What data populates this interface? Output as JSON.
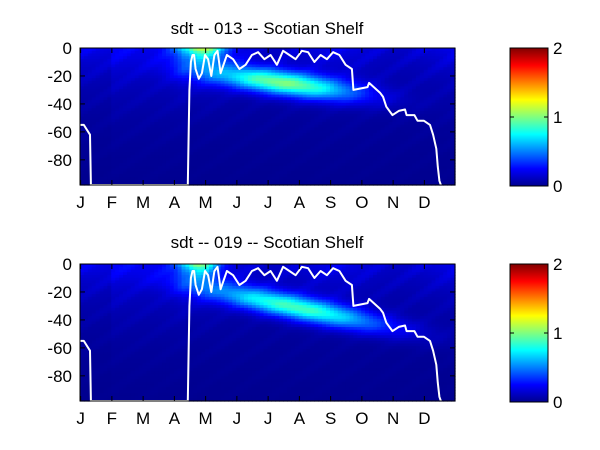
{
  "chart_data": [
    {
      "type": "heatmap",
      "title": "sdt -- 013 -- Scotian Shelf",
      "xlabel": "",
      "ylabel": "",
      "x_tick_labels": [
        "J",
        "F",
        "M",
        "A",
        "M",
        "J",
        "J",
        "A",
        "S",
        "O",
        "N",
        "D"
      ],
      "x_range_months": [
        0,
        12
      ],
      "y_tick_labels": [
        "0",
        "-20",
        "-40",
        "-60",
        "-80"
      ],
      "y_tick_values": [
        0,
        -20,
        -40,
        -60,
        -80
      ],
      "y_range": [
        -98,
        0
      ],
      "colorbar": {
        "range": [
          0,
          2
        ],
        "tick_labels": [
          "0",
          "1",
          "2"
        ],
        "colormap": "jet"
      },
      "mixed_layer_line": {
        "color": "#ffffff",
        "months": [
          0,
          0.12,
          0.32,
          0.35,
          3.45,
          3.5,
          3.55,
          3.6,
          3.65,
          3.7,
          3.8,
          3.9,
          4.0,
          4.1,
          4.2,
          4.3,
          4.4,
          4.5,
          4.7,
          4.9,
          5.1,
          5.3,
          5.5,
          5.7,
          5.9,
          6.1,
          6.3,
          6.5,
          6.7,
          6.9,
          7.1,
          7.3,
          7.5,
          7.7,
          7.9,
          8.1,
          8.3,
          8.5,
          8.7,
          8.75,
          9.2,
          9.25,
          9.6,
          9.7,
          9.8,
          10.0,
          10.2,
          10.4,
          10.45,
          10.7,
          10.8,
          11.0,
          11.2,
          11.3,
          11.4,
          11.45,
          11.5,
          11.55
        ],
        "depths": [
          -55,
          -55,
          -62,
          -98,
          -98,
          -30,
          -10,
          -5,
          -5,
          -15,
          -22,
          -18,
          -5,
          -8,
          -20,
          -5,
          -2,
          -18,
          -5,
          -8,
          -15,
          -12,
          -5,
          -3,
          -8,
          -5,
          -12,
          -2,
          -5,
          -8,
          -2,
          -3,
          -10,
          -5,
          -8,
          -3,
          -5,
          -12,
          -15,
          -30,
          -28,
          -25,
          -32,
          -35,
          -42,
          -48,
          -45,
          -44,
          -48,
          -48,
          -52,
          -52,
          -55,
          -62,
          -72,
          -85,
          -95,
          -98
        ]
      },
      "features": [
        {
          "name": "surface-maximum",
          "month_range": [
            3.4,
            4.4
          ],
          "depth_range": [
            0,
            -12
          ],
          "value": 1.0
        },
        {
          "name": "subsurface-maximum",
          "month_range": [
            4.5,
            8.5
          ],
          "depth_range": [
            -15,
            -35
          ],
          "value": 0.9
        }
      ]
    },
    {
      "type": "heatmap",
      "title": "sdt -- 019 -- Scotian Shelf",
      "xlabel": "",
      "ylabel": "",
      "x_tick_labels": [
        "J",
        "F",
        "M",
        "A",
        "M",
        "J",
        "J",
        "A",
        "S",
        "O",
        "N",
        "D"
      ],
      "x_range_months": [
        0,
        12
      ],
      "y_tick_labels": [
        "0",
        "-20",
        "-40",
        "-60",
        "-80"
      ],
      "y_tick_values": [
        0,
        -20,
        -40,
        -60,
        -80
      ],
      "y_range": [
        -98,
        0
      ],
      "colorbar": {
        "range": [
          0,
          2
        ],
        "tick_labels": [
          "0",
          "1",
          "2"
        ],
        "colormap": "jet"
      },
      "mixed_layer_line": {
        "color": "#ffffff",
        "months": [
          0,
          0.12,
          0.32,
          0.35,
          3.45,
          3.5,
          3.55,
          3.6,
          3.65,
          3.7,
          3.8,
          3.9,
          4.0,
          4.1,
          4.2,
          4.3,
          4.4,
          4.5,
          4.7,
          4.9,
          5.1,
          5.3,
          5.5,
          5.7,
          5.9,
          6.1,
          6.3,
          6.5,
          6.7,
          6.9,
          7.1,
          7.3,
          7.5,
          7.7,
          7.9,
          8.1,
          8.3,
          8.5,
          8.7,
          8.75,
          9.2,
          9.25,
          9.6,
          9.7,
          9.8,
          10.0,
          10.2,
          10.4,
          10.45,
          10.7,
          10.8,
          11.0,
          11.2,
          11.3,
          11.4,
          11.45,
          11.5,
          11.55
        ],
        "depths": [
          -55,
          -55,
          -62,
          -98,
          -98,
          -30,
          -10,
          -5,
          -5,
          -15,
          -22,
          -18,
          -5,
          -8,
          -20,
          -5,
          -2,
          -18,
          -5,
          -8,
          -15,
          -12,
          -5,
          -3,
          -8,
          -5,
          -12,
          -2,
          -5,
          -8,
          -2,
          -3,
          -10,
          -5,
          -8,
          -3,
          -5,
          -12,
          -15,
          -30,
          -28,
          -25,
          -32,
          -35,
          -42,
          -48,
          -45,
          -44,
          -48,
          -48,
          -52,
          -52,
          -55,
          -62,
          -72,
          -85,
          -95,
          -98
        ]
      },
      "features": [
        {
          "name": "surface-maximum",
          "month_range": [
            3.4,
            4.2
          ],
          "depth_range": [
            0,
            -12
          ],
          "value": 0.9
        },
        {
          "name": "subsurface-maximum",
          "month_range": [
            4.5,
            9.3
          ],
          "depth_range": [
            -20,
            -42
          ],
          "value": 0.8
        }
      ]
    }
  ]
}
